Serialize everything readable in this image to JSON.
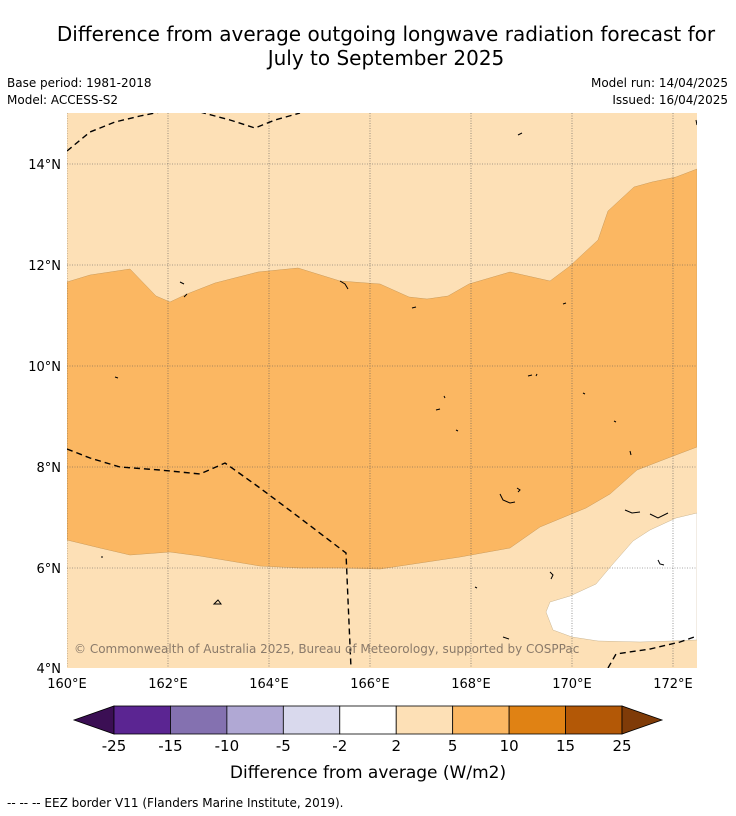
{
  "title_line1": "Difference from average outgoing longwave radiation forecast for",
  "title_line2": "July to September 2025",
  "meta": {
    "base_period": "Base period: 1981-2018",
    "model": "Model: ACCESS-S2",
    "model_run": "Model run: 14/04/2025",
    "issued": "Issued: 16/04/2025"
  },
  "map": {
    "lon_labels": [
      "160°E",
      "162°E",
      "164°E",
      "166°E",
      "168°E",
      "170°E",
      "172°E"
    ],
    "lat_labels": [
      "14°N",
      "12°N",
      "10°N",
      "8°N",
      "6°N",
      "4°N"
    ],
    "copyright": "© Commonwealth of Australia 2025, Bureau of Meteorology, supported by COSPPac"
  },
  "legend": {
    "ticks": [
      "-25",
      "-15",
      "-10",
      "-5",
      "-2",
      "2",
      "5",
      "10",
      "15",
      "25"
    ],
    "colors": [
      "#3b0f54",
      "#5b2592",
      "#8471b0",
      "#b0a8d4",
      "#d9d9ed",
      "#ffffff",
      "#fde0b6",
      "#fbb762",
      "#e08214",
      "#b35806",
      "#7f3b08"
    ],
    "label": "Difference from average (W/m2)"
  },
  "footer": "--  --  -- EEZ border V11 (Flanders Marine Institute, 2019).",
  "colors": {
    "light_orange": "#fde0b6",
    "mid_orange": "#fbb762",
    "white": "#ffffff"
  }
}
